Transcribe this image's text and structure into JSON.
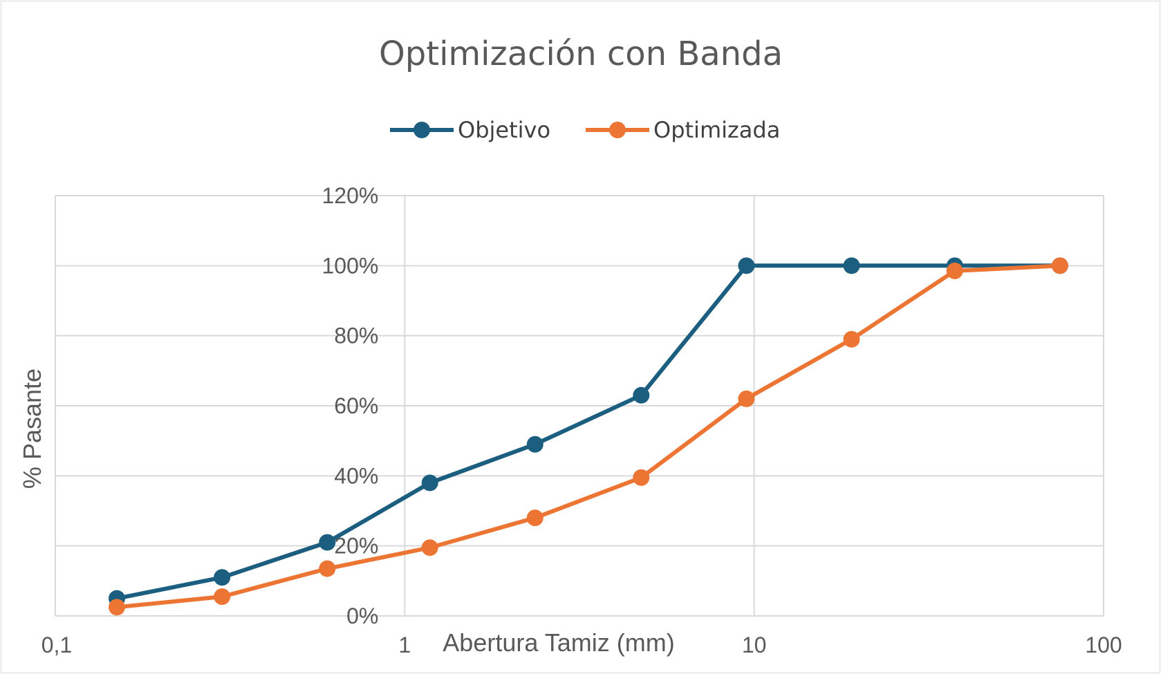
{
  "chart_data": {
    "type": "line",
    "title": "Optimización con Banda",
    "xlabel": "Abertura Tamiz (mm)",
    "ylabel": "% Pasante",
    "x_scale": "log",
    "xlim": [
      0.1,
      100
    ],
    "ylim": [
      0,
      1.2
    ],
    "x_ticks": [
      0.1,
      1,
      10,
      100
    ],
    "x_tick_labels": [
      "0,1",
      "1",
      "10",
      "100"
    ],
    "y_ticks": [
      0,
      0.2,
      0.4,
      0.6,
      0.8,
      1.0,
      1.2
    ],
    "y_tick_labels": [
      "0%",
      "20%",
      "40%",
      "60%",
      "80%",
      "100%",
      "120%"
    ],
    "grid": true,
    "legend_position": "top",
    "x": [
      0.15,
      0.3,
      0.6,
      1.18,
      2.36,
      4.75,
      9.5,
      19,
      37.5,
      75
    ],
    "series": [
      {
        "name": "Objetivo",
        "color": "#1b5e80",
        "values": [
          0.05,
          0.11,
          0.21,
          0.38,
          0.49,
          0.63,
          1.0,
          1.0,
          1.0,
          1.0
        ]
      },
      {
        "name": "Optimizada",
        "color": "#ed7534",
        "values": [
          0.025,
          0.055,
          0.135,
          0.195,
          0.28,
          0.395,
          0.62,
          0.79,
          0.985,
          1.0
        ]
      }
    ]
  }
}
